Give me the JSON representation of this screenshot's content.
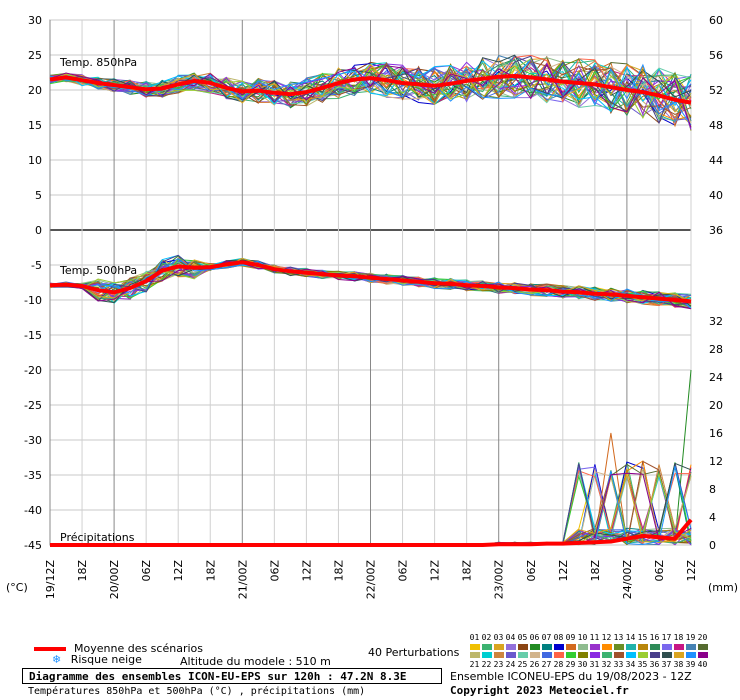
{
  "chart_data": {
    "type": "line",
    "title": "Diagramme des ensembles ICON-EU-EPS sur 120h : 47.2N 8.3E",
    "subtitle": "Températures 850hPa et 500hPa (°C) , précipitations (mm)",
    "left_axis": {
      "unit_label": "(°C)",
      "ticks": [
        30,
        25,
        20,
        15,
        10,
        5,
        0,
        -5,
        -10,
        -15,
        -20,
        -25,
        -30,
        -35,
        -40,
        -45
      ],
      "range": [
        -45,
        30
      ]
    },
    "right_axis": {
      "unit_label": "(mm)",
      "upper_ticks": [
        60,
        56,
        52,
        48,
        44,
        40,
        36
      ],
      "lower_ticks": [
        32,
        28,
        24,
        20,
        16,
        12,
        8,
        4,
        0
      ],
      "upper_range_note": "850hPa panel 36..60",
      "lower_range": [
        0,
        32
      ]
    },
    "x_ticks": [
      "19/12Z",
      "18Z",
      "20/00Z",
      "06Z",
      "12Z",
      "18Z",
      "21/00Z",
      "06Z",
      "12Z",
      "18Z",
      "22/00Z",
      "06Z",
      "12Z",
      "18Z",
      "23/00Z",
      "06Z",
      "12Z",
      "18Z",
      "24/00Z",
      "06Z",
      "12Z"
    ],
    "panel_labels": {
      "t850": "Temp. 850hPa",
      "t500": "Temp. 500hPa",
      "precip": "Précipitations"
    },
    "series": [
      {
        "name": "Moyenne des scénarios T850",
        "color": "#ff0000",
        "values": [
          21.5,
          21.8,
          21.4,
          21.0,
          20.7,
          20.4,
          20.1,
          20.2,
          20.8,
          21.3,
          21.0,
          20.3,
          19.8,
          19.9,
          19.6,
          19.4,
          19.7,
          20.3,
          21.0,
          21.5,
          21.7,
          21.4,
          21.0,
          20.8,
          20.6,
          20.9,
          21.3,
          21.6,
          21.9,
          22.0,
          21.8,
          21.5,
          21.2,
          21.0,
          20.8,
          20.4,
          20.0,
          19.7,
          19.2,
          18.6,
          18.2
        ]
      },
      {
        "name": "Moyenne des scénarios T500",
        "color": "#ff0000",
        "values": [
          -7.9,
          -7.8,
          -8.0,
          -8.6,
          -8.9,
          -8.3,
          -7.3,
          -5.8,
          -5.2,
          -5.4,
          -5.3,
          -4.9,
          -4.6,
          -5.0,
          -5.6,
          -5.9,
          -6.1,
          -6.3,
          -6.5,
          -6.6,
          -6.8,
          -7.0,
          -7.2,
          -7.4,
          -7.6,
          -7.7,
          -7.9,
          -8.0,
          -8.2,
          -8.3,
          -8.5,
          -8.6,
          -8.8,
          -8.9,
          -9.1,
          -9.2,
          -9.4,
          -9.6,
          -9.8,
          -10.0,
          -10.2
        ]
      },
      {
        "name": "Moyenne des scénarios Précip",
        "color": "#ff0000",
        "values": [
          0,
          0,
          0,
          0,
          0,
          0,
          0,
          0,
          0,
          0,
          0,
          0,
          0,
          0,
          0,
          0,
          0,
          0,
          0,
          0,
          0,
          0,
          0,
          0,
          0,
          0,
          0,
          0,
          0.1,
          0.1,
          0.1,
          0.2,
          0.2,
          0.3,
          0.4,
          0.5,
          0.9,
          1.3,
          1.1,
          0.9,
          3.6
        ]
      }
    ],
    "perturbation_count": 40,
    "grid": true
  },
  "legend": {
    "mean_label": "Moyenne des scénarios",
    "snow_label": "Risque neige",
    "altitude_label": "Altitude du modele : 510 m",
    "perturbations_label": "40 Perturbations",
    "perturbation_numbers_row1": [
      "01",
      "02",
      "03",
      "04",
      "05",
      "06",
      "07",
      "08",
      "09",
      "10",
      "11",
      "12",
      "13",
      "14",
      "15",
      "16",
      "17",
      "18",
      "19",
      "20"
    ],
    "perturbation_numbers_row2": [
      "21",
      "22",
      "23",
      "24",
      "25",
      "26",
      "27",
      "28",
      "29",
      "30",
      "31",
      "32",
      "33",
      "34",
      "35",
      "36",
      "37",
      "38",
      "39",
      "40"
    ],
    "perturbation_colors_row1": [
      "#f0c000",
      "#3cb371",
      "#daa520",
      "#9370db",
      "#8b4513",
      "#228b22",
      "#008080",
      "#0000cd",
      "#d2691e",
      "#8fbc8f",
      "#9932cc",
      "#ff8c00",
      "#6b8e23",
      "#20b2aa",
      "#b8860b",
      "#2e8b57",
      "#7b68ee",
      "#c71585",
      "#4682b4",
      "#556b2f"
    ],
    "perturbation_colors_row2": [
      "#bdb76b",
      "#00ced1",
      "#cd853f",
      "#6a5acd",
      "#66cdaa",
      "#d2b48c",
      "#4169e1",
      "#ff6347",
      "#32cd32",
      "#808000",
      "#8a2be2",
      "#3cb371",
      "#a0522d",
      "#00bfff",
      "#9acd32",
      "#483d8b",
      "#2f4f4f",
      "#daa520",
      "#1e90ff",
      "#8b008b"
    ]
  },
  "footer": {
    "title": "Diagramme des ensembles ICON-EU-EPS sur 120h : 47.2N 8.3E",
    "subtitle": "Températures 850hPa et 500hPa (°C) , précipitations (mm)",
    "run_label": "Ensemble ICONEU-EPS du 19/08/2023 - 12Z",
    "copyright": "Copyright 2023 Meteociel.fr"
  }
}
